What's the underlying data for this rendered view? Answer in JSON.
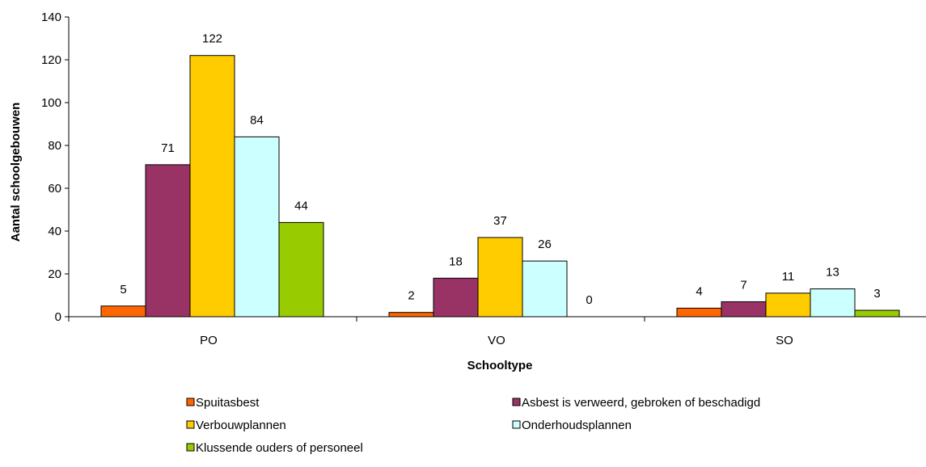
{
  "chart_data": {
    "type": "bar",
    "title": "",
    "xlabel": "Schooltype",
    "ylabel": "Aantal schoolgebouwen",
    "ylim": [
      0,
      140
    ],
    "yticks": [
      0,
      20,
      40,
      60,
      80,
      100,
      120,
      140
    ],
    "categories": [
      "PO",
      "VO",
      "SO"
    ],
    "series": [
      {
        "name": "Spuitasbest",
        "color": "#ff6600",
        "values": [
          5,
          2,
          4
        ]
      },
      {
        "name": "Asbest is verweerd, gebroken of beschadigd",
        "color": "#993366",
        "values": [
          71,
          18,
          7
        ]
      },
      {
        "name": "Verbouwplannen",
        "color": "#ffcc00",
        "values": [
          122,
          37,
          11
        ]
      },
      {
        "name": "Onderhoudsplannen",
        "color": "#ccffff",
        "values": [
          84,
          26,
          13
        ]
      },
      {
        "name": "Klussende ouders of personeel",
        "color": "#99cc00",
        "values": [
          44,
          0,
          3
        ]
      }
    ],
    "data_labels": true,
    "grid": false,
    "legend_position": "bottom"
  }
}
